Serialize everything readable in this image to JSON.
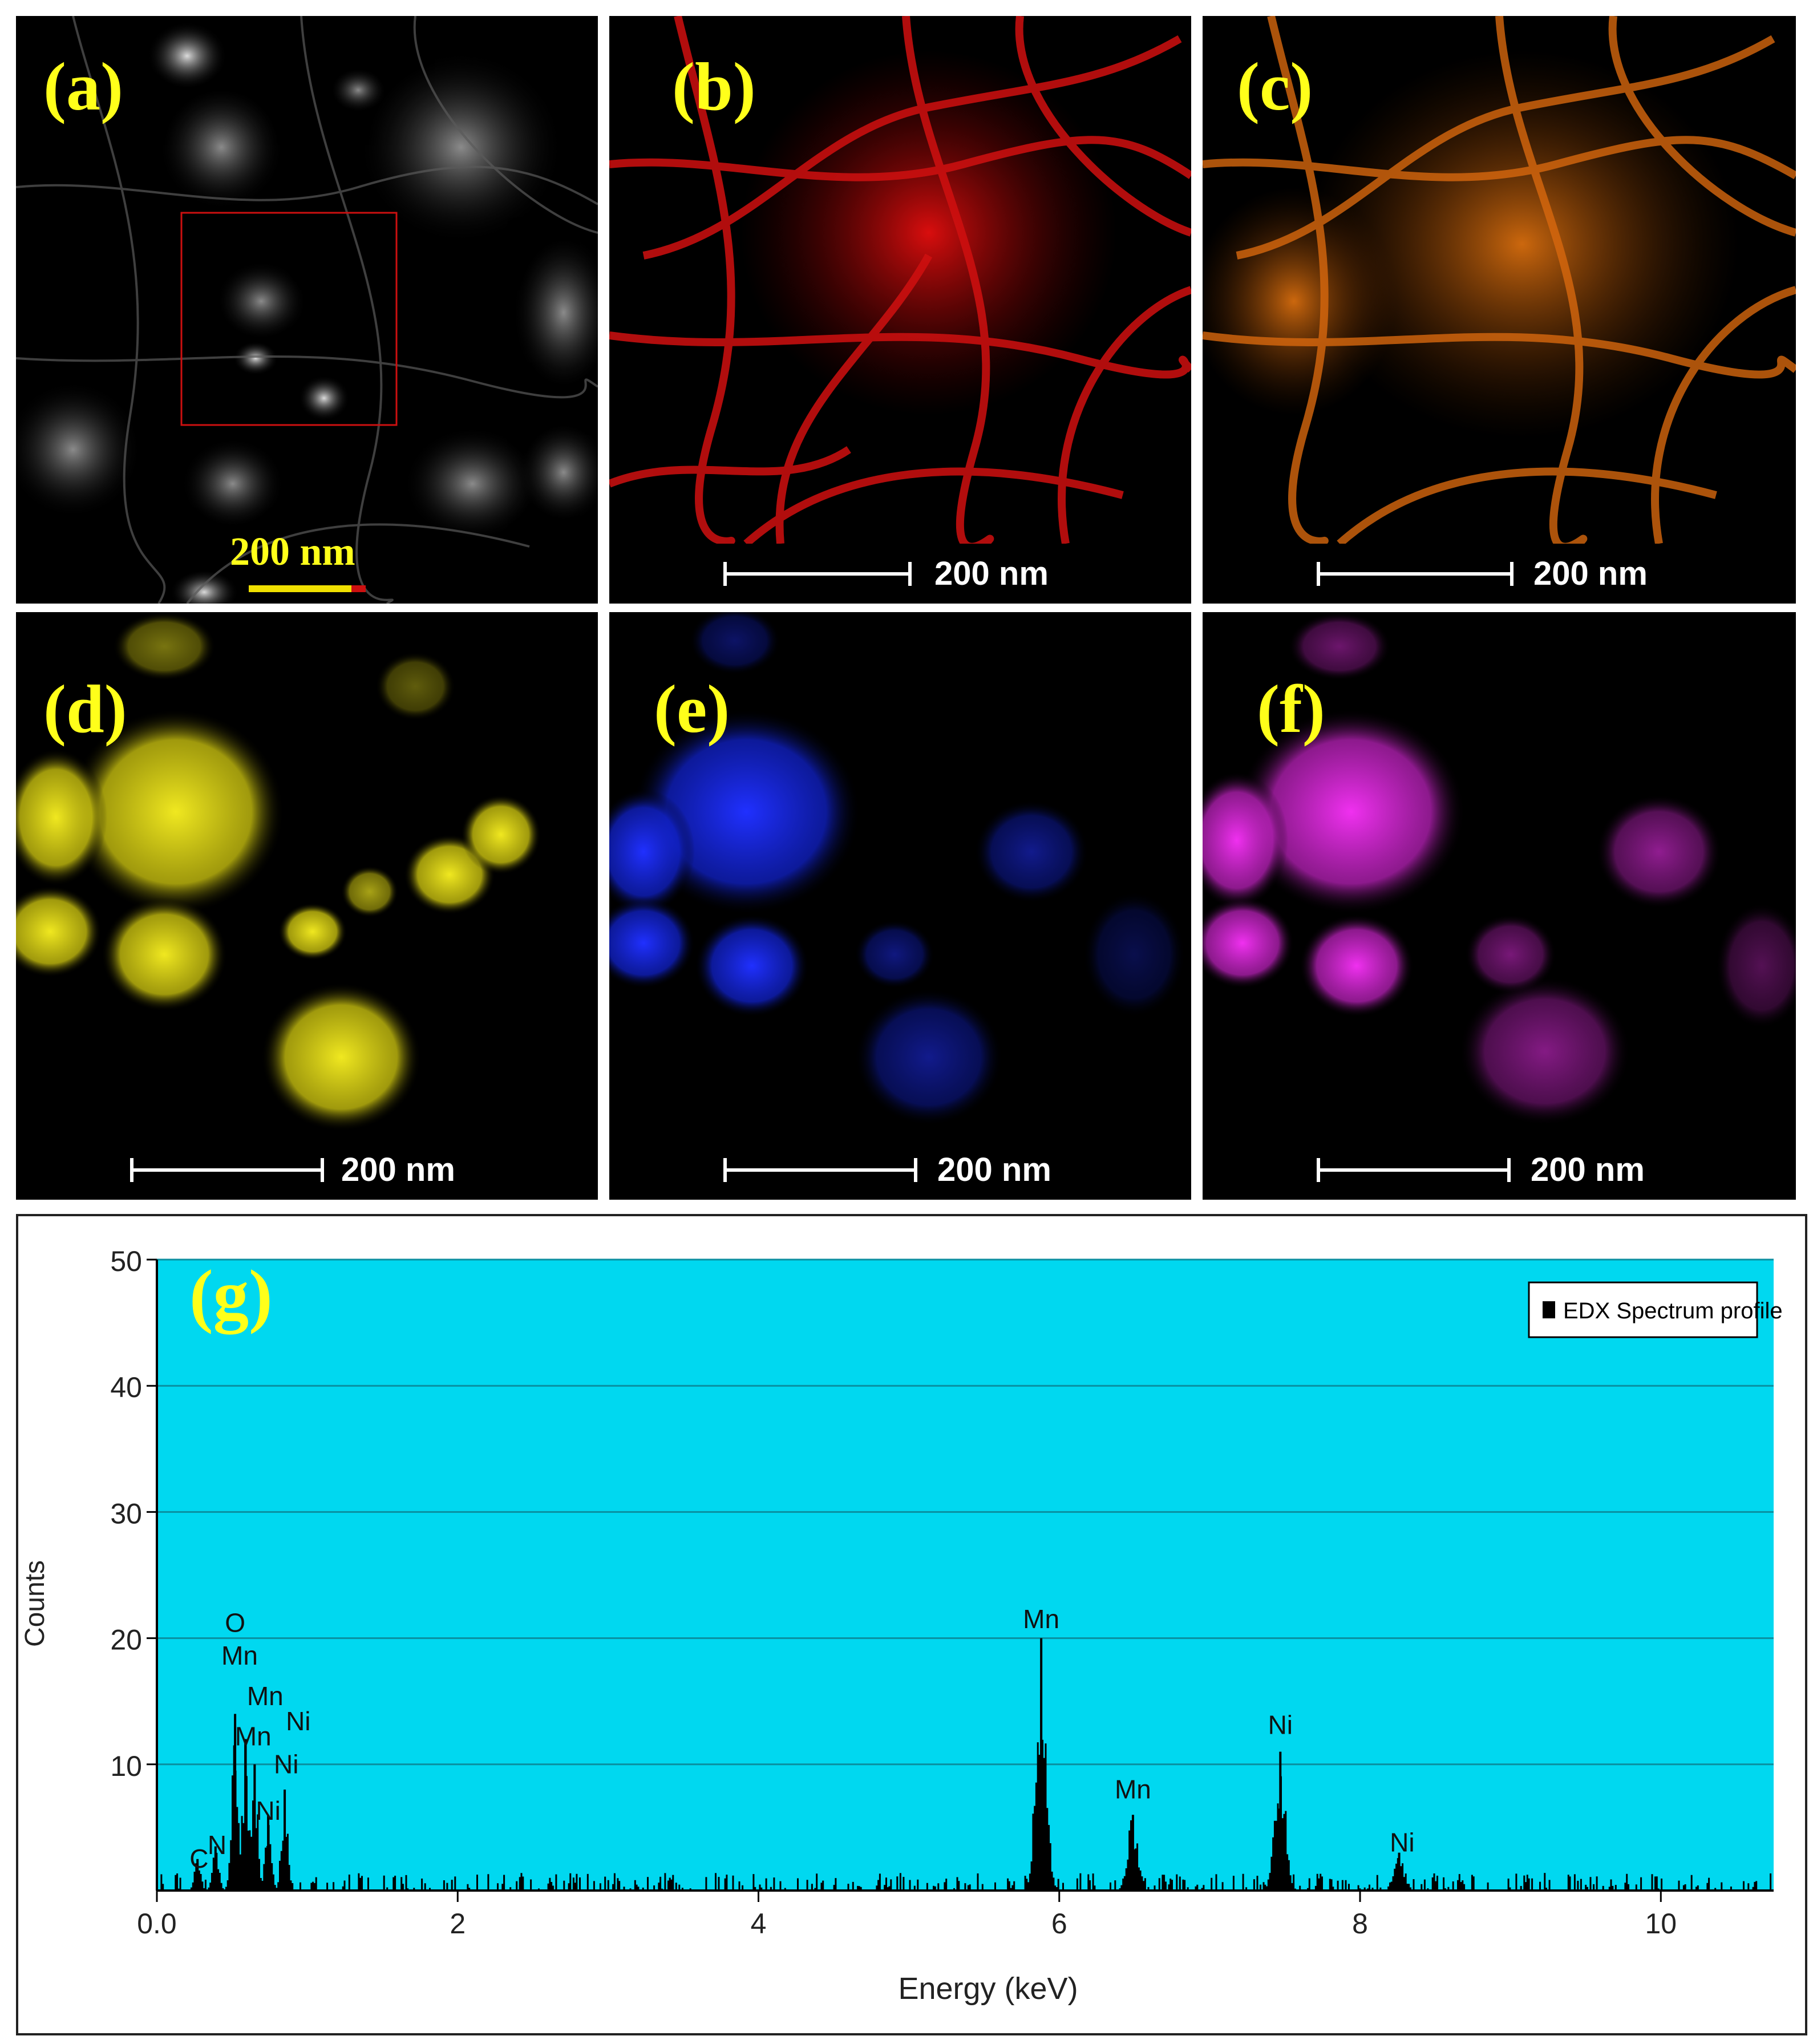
{
  "panels": {
    "a": {
      "label": "(a)",
      "scale": "200 nm"
    },
    "b": {
      "label": "(b)",
      "scale": "200 nm",
      "color": "#e01010"
    },
    "c": {
      "label": "(c)",
      "scale": "200 nm",
      "color": "#e07010"
    },
    "d": {
      "label": "(d)",
      "scale": "200 nm",
      "color": "#e8e010"
    },
    "e": {
      "label": "(e)",
      "scale": "200 nm",
      "color": "#1020e0"
    },
    "f": {
      "label": "(f)",
      "scale": "200 nm",
      "color": "#d020d0"
    }
  },
  "chart_data": {
    "type": "line",
    "panel_label": "(g)",
    "xlabel": "Energy (keV)",
    "ylabel": "Counts",
    "xlim": [
      0,
      10.75
    ],
    "ylim": [
      0,
      50
    ],
    "xticks": [
      "0.0",
      "2",
      "4",
      "6",
      "8",
      "10"
    ],
    "yticks": [
      "10",
      "20",
      "30",
      "40",
      "50"
    ],
    "grid": true,
    "legend": {
      "position": "top-right",
      "entries": [
        "EDX Spectrum profile"
      ]
    },
    "background_color": "#00d8f0",
    "series": [
      {
        "name": "EDX Spectrum profile",
        "peaks": [
          {
            "x": 0.27,
            "y": 2.5
          },
          {
            "x": 0.39,
            "y": 3.5
          },
          {
            "x": 0.52,
            "y": 14
          },
          {
            "x": 0.59,
            "y": 12
          },
          {
            "x": 0.65,
            "y": 10
          },
          {
            "x": 0.74,
            "y": 6
          },
          {
            "x": 0.85,
            "y": 8
          },
          {
            "x": 5.88,
            "y": 20
          },
          {
            "x": 6.49,
            "y": 6
          },
          {
            "x": 7.47,
            "y": 11
          },
          {
            "x": 8.26,
            "y": 3
          }
        ]
      }
    ],
    "annotations": [
      {
        "text": "C",
        "x": 0.28,
        "y": 1.8
      },
      {
        "text": "N",
        "x": 0.4,
        "y": 2.9
      },
      {
        "text": "O",
        "x": 0.52,
        "y": 20.5
      },
      {
        "text": "Mn",
        "x": 0.55,
        "y": 17.9
      },
      {
        "text": "Mn",
        "x": 0.72,
        "y": 14.7
      },
      {
        "text": "Ni",
        "x": 0.94,
        "y": 12.7
      },
      {
        "text": "Mn",
        "x": 0.64,
        "y": 11.5
      },
      {
        "text": "Ni",
        "x": 0.86,
        "y": 9.3
      },
      {
        "text": "Ni",
        "x": 0.74,
        "y": 5.6
      },
      {
        "text": "Mn",
        "x": 5.88,
        "y": 20.8
      },
      {
        "text": "Mn",
        "x": 6.49,
        "y": 7.3
      },
      {
        "text": "Ni",
        "x": 7.47,
        "y": 12.4
      },
      {
        "text": "Ni",
        "x": 8.28,
        "y": 3.1
      }
    ]
  }
}
